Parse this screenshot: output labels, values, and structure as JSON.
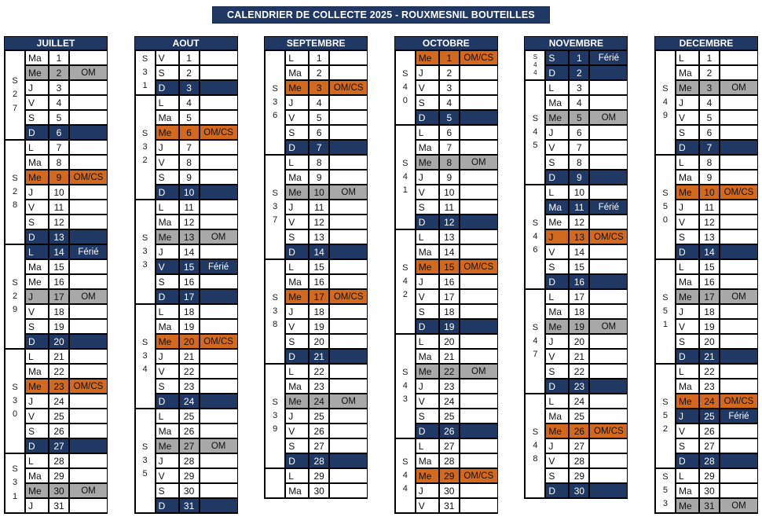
{
  "title": "CALENDRIER DE COLLECTE 2025 - ROUXMESNIL BOUTEILLES",
  "colors": {
    "navy": "#1F3864",
    "orange": "#D2691E",
    "gray": "#A8A8A8"
  },
  "note_labels": {
    "om": "OM",
    "omcs": "OM/CS",
    "ferie": "Férié"
  },
  "months": [
    {
      "name": "JUILLET",
      "weeks": [
        {
          "label": "S27",
          "rows": 6,
          "small": false
        },
        {
          "label": "S28",
          "rows": 7,
          "small": false
        },
        {
          "label": "S29",
          "rows": 7,
          "small": false
        },
        {
          "label": "S30",
          "rows": 7,
          "small": false
        },
        {
          "label": "S31",
          "rows": 4,
          "small": false
        }
      ],
      "days": [
        [
          "Ma",
          1,
          "",
          ""
        ],
        [
          "Me",
          2,
          "om",
          "OM"
        ],
        [
          "J",
          3,
          "",
          ""
        ],
        [
          "V",
          4,
          "",
          ""
        ],
        [
          "S",
          5,
          "",
          ""
        ],
        [
          "D",
          6,
          "navy",
          ""
        ],
        [
          "L",
          7,
          "",
          ""
        ],
        [
          "Ma",
          8,
          "",
          ""
        ],
        [
          "Me",
          9,
          "omcs",
          "OM/CS"
        ],
        [
          "J",
          10,
          "",
          ""
        ],
        [
          "V",
          11,
          "",
          ""
        ],
        [
          "S",
          12,
          "",
          ""
        ],
        [
          "D",
          13,
          "navy",
          ""
        ],
        [
          "L",
          14,
          "navy",
          "Férié"
        ],
        [
          "Ma",
          15,
          "",
          ""
        ],
        [
          "Me",
          16,
          "",
          ""
        ],
        [
          "J",
          17,
          "om",
          "OM"
        ],
        [
          "V",
          18,
          "",
          ""
        ],
        [
          "S",
          19,
          "",
          ""
        ],
        [
          "D",
          20,
          "navy",
          ""
        ],
        [
          "L",
          21,
          "",
          ""
        ],
        [
          "Ma",
          22,
          "",
          ""
        ],
        [
          "Me",
          23,
          "omcs",
          "OM/CS"
        ],
        [
          "J",
          24,
          "",
          ""
        ],
        [
          "V",
          25,
          "",
          ""
        ],
        [
          "S",
          26,
          "",
          ""
        ],
        [
          "D",
          27,
          "navy",
          ""
        ],
        [
          "L",
          28,
          "",
          ""
        ],
        [
          "Ma",
          29,
          "",
          ""
        ],
        [
          "Me",
          30,
          "om",
          "OM"
        ],
        [
          "J",
          31,
          "",
          ""
        ]
      ]
    },
    {
      "name": "AOUT",
      "weeks": [
        {
          "label": "S31",
          "rows": 3,
          "small": false
        },
        {
          "label": "S32",
          "rows": 7,
          "small": false
        },
        {
          "label": "S33",
          "rows": 7,
          "small": false
        },
        {
          "label": "S34",
          "rows": 7,
          "small": false
        },
        {
          "label": "S35",
          "rows": 7,
          "small": false
        }
      ],
      "days": [
        [
          "V",
          1,
          "",
          ""
        ],
        [
          "S",
          2,
          "",
          ""
        ],
        [
          "D",
          3,
          "navy",
          ""
        ],
        [
          "L",
          4,
          "",
          ""
        ],
        [
          "Ma",
          5,
          "",
          ""
        ],
        [
          "Me",
          6,
          "omcs",
          "OM/CS"
        ],
        [
          "J",
          7,
          "",
          ""
        ],
        [
          "V",
          8,
          "",
          ""
        ],
        [
          "S",
          9,
          "",
          ""
        ],
        [
          "D",
          10,
          "navy",
          ""
        ],
        [
          "L",
          11,
          "",
          ""
        ],
        [
          "Ma",
          12,
          "",
          ""
        ],
        [
          "Me",
          13,
          "om",
          "OM"
        ],
        [
          "J",
          14,
          "",
          ""
        ],
        [
          "V",
          15,
          "navy",
          "Férié"
        ],
        [
          "S",
          16,
          "",
          ""
        ],
        [
          "D",
          17,
          "navy",
          ""
        ],
        [
          "L",
          18,
          "",
          ""
        ],
        [
          "Ma",
          19,
          "",
          ""
        ],
        [
          "Me",
          20,
          "omcs",
          "OM/CS"
        ],
        [
          "J",
          21,
          "",
          ""
        ],
        [
          "V",
          22,
          "",
          ""
        ],
        [
          "S",
          23,
          "",
          ""
        ],
        [
          "D",
          24,
          "navy",
          ""
        ],
        [
          "L",
          25,
          "",
          ""
        ],
        [
          "Ma",
          26,
          "",
          ""
        ],
        [
          "Me",
          27,
          "om",
          "OM"
        ],
        [
          "J",
          28,
          "",
          ""
        ],
        [
          "V",
          29,
          "",
          ""
        ],
        [
          "S",
          30,
          "",
          ""
        ],
        [
          "D",
          31,
          "navy",
          ""
        ]
      ]
    },
    {
      "name": "SEPTEMBRE",
      "weeks": [
        {
          "label": "S36",
          "rows": 7,
          "small": false
        },
        {
          "label": "S37",
          "rows": 7,
          "small": false
        },
        {
          "label": "S38",
          "rows": 7,
          "small": false
        },
        {
          "label": "S39",
          "rows": 7,
          "small": false
        },
        {
          "label": "",
          "rows": 2,
          "small": false
        }
      ],
      "days": [
        [
          "L",
          1,
          "",
          ""
        ],
        [
          "Ma",
          2,
          "",
          ""
        ],
        [
          "Me",
          3,
          "omcs",
          "OM/CS"
        ],
        [
          "J",
          4,
          "",
          ""
        ],
        [
          "V",
          5,
          "",
          ""
        ],
        [
          "S",
          6,
          "",
          ""
        ],
        [
          "D",
          7,
          "navy",
          ""
        ],
        [
          "L",
          8,
          "",
          ""
        ],
        [
          "Ma",
          9,
          "",
          ""
        ],
        [
          "Me",
          10,
          "om",
          "OM"
        ],
        [
          "J",
          11,
          "",
          ""
        ],
        [
          "V",
          12,
          "",
          ""
        ],
        [
          "S",
          13,
          "",
          ""
        ],
        [
          "D",
          14,
          "navy",
          ""
        ],
        [
          "L",
          15,
          "",
          ""
        ],
        [
          "Ma",
          16,
          "",
          ""
        ],
        [
          "Me",
          17,
          "omcs",
          "OM/CS"
        ],
        [
          "J",
          18,
          "",
          ""
        ],
        [
          "V",
          19,
          "",
          ""
        ],
        [
          "S",
          20,
          "",
          ""
        ],
        [
          "D",
          21,
          "navy",
          ""
        ],
        [
          "L",
          22,
          "",
          ""
        ],
        [
          "Ma",
          23,
          "",
          ""
        ],
        [
          "Me",
          24,
          "om",
          "OM"
        ],
        [
          "J",
          25,
          "",
          ""
        ],
        [
          "V",
          26,
          "",
          ""
        ],
        [
          "S",
          27,
          "",
          ""
        ],
        [
          "D",
          28,
          "navy",
          ""
        ],
        [
          "L",
          29,
          "",
          ""
        ],
        [
          "Ma",
          30,
          "",
          ""
        ]
      ]
    },
    {
      "name": "OCTOBRE",
      "weeks": [
        {
          "label": "S40",
          "rows": 5,
          "small": false
        },
        {
          "label": "S41",
          "rows": 7,
          "small": false
        },
        {
          "label": "S42",
          "rows": 7,
          "small": false
        },
        {
          "label": "S43",
          "rows": 7,
          "small": false
        },
        {
          "label": "S44",
          "rows": 5,
          "small": false
        }
      ],
      "days": [
        [
          "Me",
          1,
          "omcs",
          "OM/CS"
        ],
        [
          "J",
          2,
          "",
          ""
        ],
        [
          "V",
          3,
          "",
          ""
        ],
        [
          "S",
          4,
          "",
          ""
        ],
        [
          "D",
          5,
          "navy",
          ""
        ],
        [
          "L",
          6,
          "",
          ""
        ],
        [
          "Ma",
          7,
          "",
          ""
        ],
        [
          "Me",
          8,
          "om",
          "OM"
        ],
        [
          "J",
          9,
          "",
          ""
        ],
        [
          "V",
          10,
          "",
          ""
        ],
        [
          "S",
          11,
          "",
          ""
        ],
        [
          "D",
          12,
          "navy",
          ""
        ],
        [
          "L",
          13,
          "",
          ""
        ],
        [
          "Ma",
          14,
          "",
          ""
        ],
        [
          "Me",
          15,
          "omcs",
          "OM/CS"
        ],
        [
          "J",
          16,
          "",
          ""
        ],
        [
          "V",
          17,
          "",
          ""
        ],
        [
          "S",
          18,
          "",
          ""
        ],
        [
          "D",
          19,
          "navy",
          ""
        ],
        [
          "L",
          20,
          "",
          ""
        ],
        [
          "Ma",
          21,
          "",
          ""
        ],
        [
          "Me",
          22,
          "om",
          "OM"
        ],
        [
          "J",
          23,
          "",
          ""
        ],
        [
          "V",
          24,
          "",
          ""
        ],
        [
          "S",
          25,
          "",
          ""
        ],
        [
          "D",
          26,
          "navy",
          ""
        ],
        [
          "L",
          27,
          "",
          ""
        ],
        [
          "Ma",
          28,
          "",
          ""
        ],
        [
          "Me",
          29,
          "omcs",
          "OM/CS"
        ],
        [
          "J",
          30,
          "",
          ""
        ],
        [
          "V",
          31,
          "",
          ""
        ]
      ]
    },
    {
      "name": "NOVEMBRE",
      "weeks": [
        {
          "label": "S44",
          "rows": 2,
          "small": true
        },
        {
          "label": "S45",
          "rows": 7,
          "small": false
        },
        {
          "label": "S46",
          "rows": 7,
          "small": false
        },
        {
          "label": "S47",
          "rows": 7,
          "small": false
        },
        {
          "label": "S48",
          "rows": 7,
          "small": false
        }
      ],
      "days": [
        [
          "S",
          1,
          "navy",
          "Férié"
        ],
        [
          "D",
          2,
          "navy",
          ""
        ],
        [
          "L",
          3,
          "",
          ""
        ],
        [
          "Ma",
          4,
          "",
          ""
        ],
        [
          "Me",
          5,
          "om",
          "OM"
        ],
        [
          "J",
          6,
          "",
          ""
        ],
        [
          "V",
          7,
          "",
          ""
        ],
        [
          "S",
          8,
          "",
          ""
        ],
        [
          "D",
          9,
          "navy",
          ""
        ],
        [
          "L",
          10,
          "",
          ""
        ],
        [
          "Ma",
          11,
          "navy",
          "Férié"
        ],
        [
          "Me",
          12,
          "",
          ""
        ],
        [
          "J",
          13,
          "omcs",
          "OM/CS"
        ],
        [
          "V",
          14,
          "",
          ""
        ],
        [
          "S",
          15,
          "",
          ""
        ],
        [
          "D",
          16,
          "navy",
          ""
        ],
        [
          "L",
          17,
          "",
          ""
        ],
        [
          "Ma",
          18,
          "",
          ""
        ],
        [
          "Me",
          19,
          "om",
          "OM"
        ],
        [
          "J",
          20,
          "",
          ""
        ],
        [
          "V",
          21,
          "",
          ""
        ],
        [
          "S",
          22,
          "",
          ""
        ],
        [
          "D",
          23,
          "navy",
          ""
        ],
        [
          "L",
          24,
          "",
          ""
        ],
        [
          "Ma",
          25,
          "",
          ""
        ],
        [
          "Me",
          26,
          "omcs",
          "OM/CS"
        ],
        [
          "J",
          27,
          "",
          ""
        ],
        [
          "V",
          28,
          "",
          ""
        ],
        [
          "S",
          29,
          "",
          ""
        ],
        [
          "D",
          30,
          "navy",
          ""
        ]
      ]
    },
    {
      "name": "DECEMBRE",
      "weeks": [
        {
          "label": "S49",
          "rows": 7,
          "small": false
        },
        {
          "label": "S50",
          "rows": 7,
          "small": false
        },
        {
          "label": "S51",
          "rows": 7,
          "small": false
        },
        {
          "label": "S52",
          "rows": 7,
          "small": false
        },
        {
          "label": "S53",
          "rows": 3,
          "small": false
        }
      ],
      "days": [
        [
          "L",
          1,
          "",
          ""
        ],
        [
          "Ma",
          2,
          "",
          ""
        ],
        [
          "Me",
          3,
          "om",
          "OM"
        ],
        [
          "J",
          4,
          "",
          ""
        ],
        [
          "V",
          5,
          "",
          ""
        ],
        [
          "S",
          6,
          "",
          ""
        ],
        [
          "D",
          7,
          "navy",
          ""
        ],
        [
          "L",
          8,
          "",
          ""
        ],
        [
          "Ma",
          9,
          "",
          ""
        ],
        [
          "Me",
          10,
          "omcs",
          "OM/CS"
        ],
        [
          "J",
          11,
          "",
          ""
        ],
        [
          "V",
          12,
          "",
          ""
        ],
        [
          "S",
          13,
          "",
          ""
        ],
        [
          "D",
          14,
          "navy",
          ""
        ],
        [
          "L",
          15,
          "",
          ""
        ],
        [
          "Ma",
          16,
          "",
          ""
        ],
        [
          "Me",
          17,
          "om",
          "OM"
        ],
        [
          "J",
          18,
          "",
          ""
        ],
        [
          "V",
          19,
          "",
          ""
        ],
        [
          "S",
          20,
          "",
          ""
        ],
        [
          "D",
          21,
          "navy",
          ""
        ],
        [
          "L",
          22,
          "",
          ""
        ],
        [
          "Ma",
          23,
          "",
          ""
        ],
        [
          "Me",
          24,
          "omcs",
          "OM/CS"
        ],
        [
          "J",
          25,
          "navy",
          "Férié"
        ],
        [
          "V",
          26,
          "",
          ""
        ],
        [
          "S",
          27,
          "",
          ""
        ],
        [
          "D",
          28,
          "navy",
          ""
        ],
        [
          "L",
          29,
          "",
          ""
        ],
        [
          "Ma",
          30,
          "",
          ""
        ],
        [
          "Me",
          31,
          "om",
          "OM"
        ]
      ]
    }
  ]
}
